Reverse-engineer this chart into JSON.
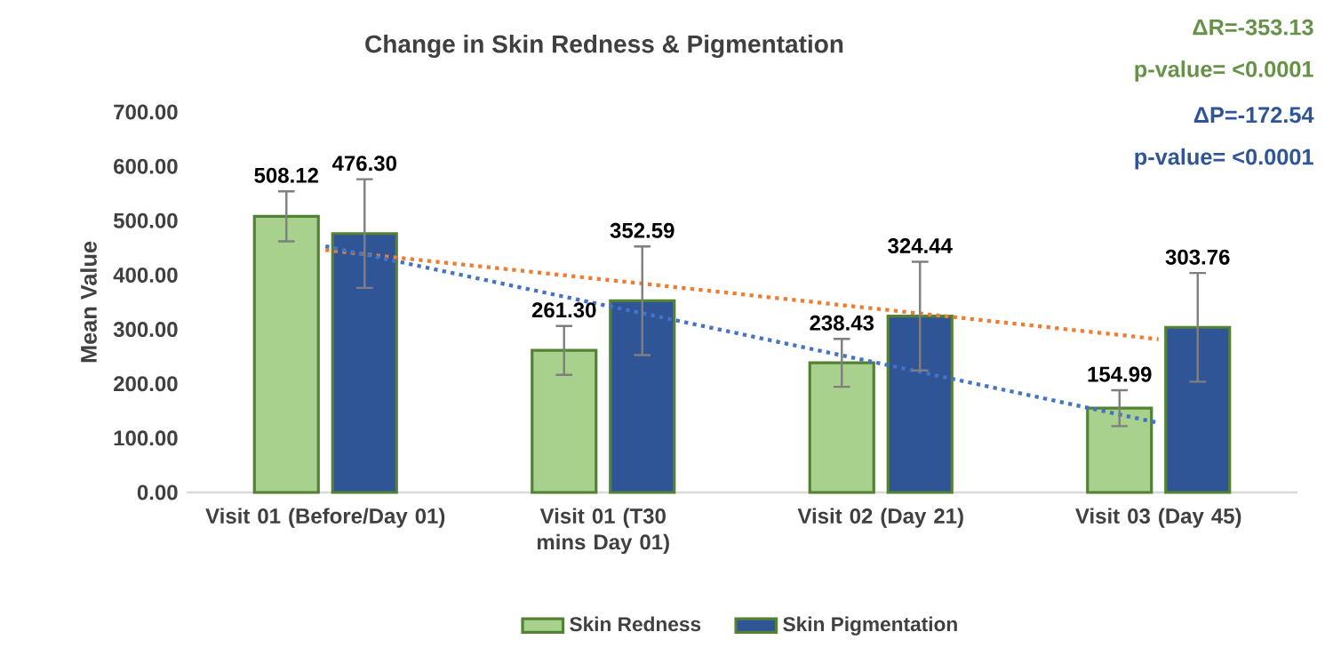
{
  "chart_data": {
    "type": "bar",
    "title": "Change in Skin Redness & Pigmentation",
    "ylabel": "Mean Value",
    "categories": [
      "Visit 01 (Before/Day 01)",
      "Visit 01 (T30 mins Day 01)",
      "Visit 02 (Day 21)",
      "Visit 03 (Day 45)"
    ],
    "series": [
      {
        "name": "Skin Redness",
        "color": "#a9d18e",
        "values": [
          508.12,
          261.3,
          238.43,
          154.99
        ],
        "value_labels": [
          "508.12",
          "261.30",
          "238.43",
          "154.99"
        ],
        "errors": [
          46,
          45,
          44,
          33
        ]
      },
      {
        "name": "Skin Pigmentation",
        "color": "#2f5597",
        "values": [
          476.3,
          352.59,
          324.44,
          303.76
        ],
        "value_labels": [
          "476.30",
          "352.59",
          "324.44",
          "303.76"
        ],
        "errors": [
          100,
          100,
          100,
          100
        ]
      },
      {
        "type": "line",
        "color": "#ed7d31",
        "line_style": "dotted",
        "values": [
          446,
          392,
          337,
          282
        ]
      },
      {
        "type": "line",
        "color": "#4472c4",
        "line_style": "dotted",
        "values": [
          453,
          345,
          237,
          128
        ]
      }
    ],
    "ylim": [
      0,
      700
    ],
    "yticks": [
      {
        "value": 0,
        "label": "0.00"
      },
      {
        "value": 100,
        "label": "100.00"
      },
      {
        "value": 200,
        "label": "200.00"
      },
      {
        "value": 300,
        "label": "300.00"
      },
      {
        "value": 400,
        "label": "400.00"
      },
      {
        "value": 500,
        "label": "500.00"
      },
      {
        "value": 600,
        "label": "600.00"
      },
      {
        "value": 700,
        "label": "700.00"
      }
    ],
    "annotations": [
      "ΔR=-353.13",
      "p-value= <0.0001",
      "ΔP=-172.54",
      "p-value= <0.0001"
    ],
    "legend": "bottom",
    "grid": false,
    "marker": "none"
  }
}
